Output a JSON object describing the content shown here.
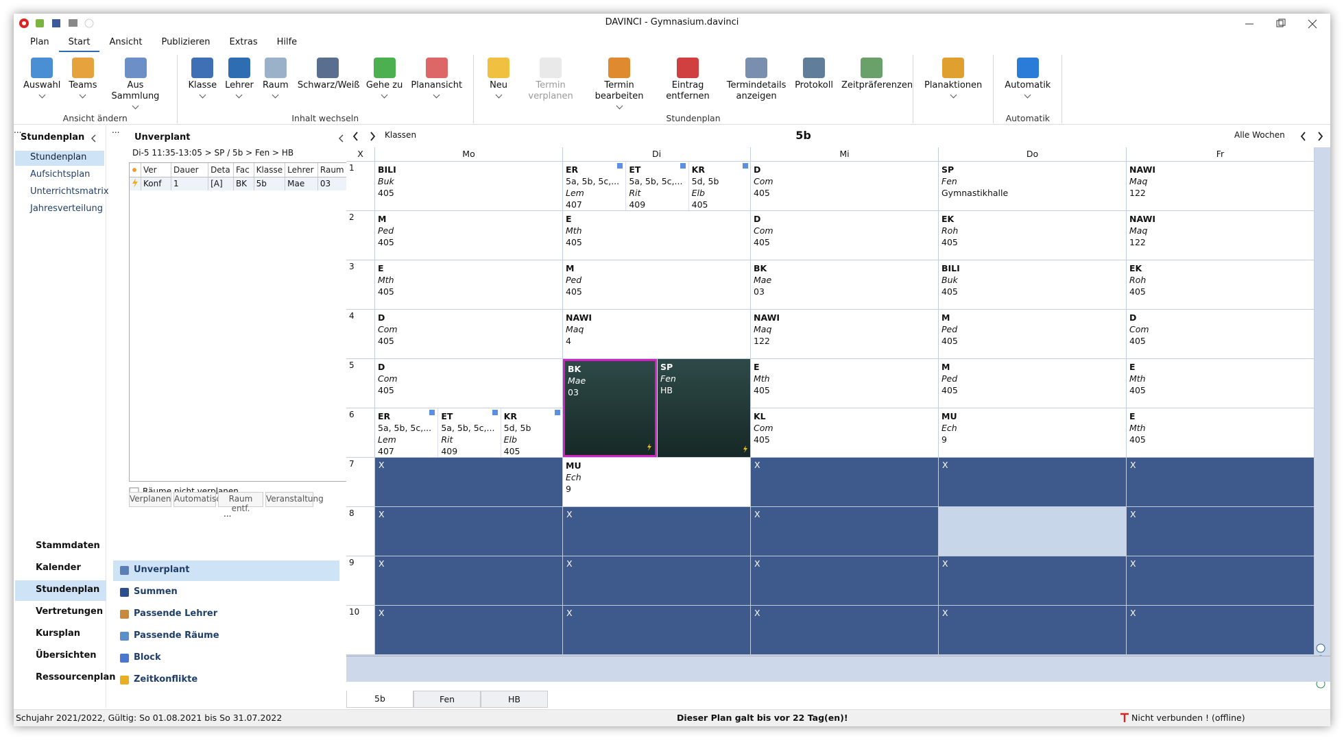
{
  "window": {
    "title": "DAVINCI - Gymnasium.davinci"
  },
  "menu": {
    "items": [
      "Plan",
      "Start",
      "Ansicht",
      "Publizieren",
      "Extras",
      "Hilfe"
    ]
  },
  "ribbon": {
    "groups": [
      {
        "label": "Ansicht ändern",
        "buttons": [
          "Auswahl",
          "Teams",
          "Aus Sammlung"
        ]
      },
      {
        "label": "Inhalt wechseln",
        "buttons": [
          "Klasse",
          "Lehrer",
          "Raum",
          "Schwarz/Weiß",
          "Gehe zu",
          "Planansicht"
        ]
      },
      {
        "label": "Stundenplan",
        "buttons": [
          "Neu",
          "Termin verplanen",
          "Termin bearbeiten",
          "Eintrag entfernen",
          "Termindetails anzeigen",
          "Protokoll",
          "Zeitpräferenzen"
        ]
      },
      {
        "buttons": [
          "Planaktionen"
        ]
      },
      {
        "label": "Automatik",
        "buttons": [
          "Automatik"
        ]
      }
    ]
  },
  "left_panel": {
    "title": "Stundenplan",
    "items": [
      "Stundenplan",
      "Aufsichtsplan",
      "Unterrichtsmatrix",
      "Jahresverteilung"
    ],
    "nav": [
      "Stammdaten",
      "Kalender",
      "Stundenplan",
      "Vertretungen",
      "Kursplan",
      "Übersichten",
      "Ressourcenplan"
    ],
    "more": "..."
  },
  "unplanned": {
    "title": "Unverplant",
    "path": "Di-5 11:35-13:05 > SP / 5b > Fen > HB",
    "headers": [
      "Ver",
      "Dauer",
      "Deta",
      "Fac",
      "Klasse",
      "Lehrer",
      "Raum"
    ],
    "rows": [
      [
        "Konf",
        "1",
        "[A]",
        "BK",
        "5b",
        "Mae",
        "03"
      ]
    ],
    "checkbox": "Räume nicht verplanen",
    "buttons": [
      "Verplanen",
      "Automatisch",
      "Raum entf.",
      "Veranstaltung"
    ],
    "more": "...",
    "views": [
      "Unverplant",
      "Summen",
      "Passende Lehrer",
      "Passende Räume",
      "Block",
      "Zeitkonflikte"
    ],
    "more2": "..."
  },
  "timetable": {
    "mode": "Klassen",
    "title": "5b",
    "weeks": "Alle Wochen",
    "corner": "X",
    "days": [
      "Mo",
      "Di",
      "Mi",
      "Do",
      "Fr"
    ],
    "rows": [
      {
        "period": "1",
        "cells": [
          [
            {
              "subject": "BILI",
              "teacher": "Buk",
              "room": "405"
            }
          ],
          [
            {
              "subject": "ER",
              "classes": "5a, 5b, 5c,...",
              "teacher": "Lem",
              "room": "407"
            },
            {
              "subject": "ET",
              "classes": "5a, 5b, 5c,...",
              "teacher": "Rit",
              "room": "409"
            },
            {
              "subject": "KR",
              "classes": "5d, 5b",
              "teacher": "Elb",
              "room": "405"
            }
          ],
          [
            {
              "subject": "D",
              "teacher": "Com",
              "room": "405"
            }
          ],
          [
            {
              "subject": "SP",
              "teacher": "Fen",
              "room": "Gymnastikhalle"
            }
          ],
          [
            {
              "subject": "NAWI",
              "teacher": "Maq",
              "room": "122"
            }
          ]
        ]
      },
      {
        "period": "2",
        "cells": [
          [
            {
              "subject": "M",
              "teacher": "Ped",
              "room": "405"
            }
          ],
          [
            {
              "subject": "E",
              "teacher": "Mth",
              "room": "405"
            }
          ],
          [
            {
              "subject": "D",
              "teacher": "Com",
              "room": "405"
            }
          ],
          [
            {
              "subject": "EK",
              "teacher": "Roh",
              "room": "405"
            }
          ],
          [
            {
              "subject": "NAWI",
              "teacher": "Maq",
              "room": "122"
            }
          ]
        ]
      },
      {
        "period": "3",
        "cells": [
          [
            {
              "subject": "E",
              "teacher": "Mth",
              "room": "405"
            }
          ],
          [
            {
              "subject": "M",
              "teacher": "Ped",
              "room": "405"
            }
          ],
          [
            {
              "subject": "BK",
              "teacher": "Mae",
              "room": "03"
            }
          ],
          [
            {
              "subject": "BILI",
              "teacher": "Buk",
              "room": "405"
            }
          ],
          [
            {
              "subject": "EK",
              "teacher": "Roh",
              "room": "405"
            }
          ]
        ]
      },
      {
        "period": "4",
        "cells": [
          [
            {
              "subject": "D",
              "teacher": "Com",
              "room": "405"
            }
          ],
          [
            {
              "subject": "NAWI",
              "teacher": "Maq",
              "room": "4"
            }
          ],
          [
            {
              "subject": "NAWI",
              "teacher": "Maq",
              "room": "122"
            }
          ],
          [
            {
              "subject": "M",
              "teacher": "Ped",
              "room": "405"
            }
          ],
          [
            {
              "subject": "D",
              "teacher": "Com",
              "room": "405"
            }
          ]
        ]
      },
      {
        "period": "5",
        "cells": [
          [
            {
              "subject": "D",
              "teacher": "Com",
              "room": "405"
            }
          ],
          [
            {
              "subject": "BK",
              "teacher": "Mae",
              "room": "03"
            },
            {
              "subject": "SP",
              "teacher": "Fen",
              "room": "HB"
            }
          ],
          [
            {
              "subject": "E",
              "teacher": "Mth",
              "room": "405"
            }
          ],
          [
            {
              "subject": "M",
              "teacher": "Ped",
              "room": "405"
            }
          ],
          [
            {
              "subject": "E",
              "teacher": "Mth",
              "room": "405"
            }
          ]
        ]
      },
      {
        "period": "6",
        "cells": [
          [
            {
              "subject": "ER",
              "classes": "5a, 5b, 5c,...",
              "teacher": "Lem",
              "room": "407"
            },
            {
              "subject": "ET",
              "classes": "5a, 5b, 5c,...",
              "teacher": "Rit",
              "room": "409"
            },
            {
              "subject": "KR",
              "classes": "5d, 5b",
              "teacher": "Elb",
              "room": "405"
            }
          ],
          null,
          [
            {
              "subject": "KL",
              "teacher": "Com",
              "room": "405"
            }
          ],
          [
            {
              "subject": "MU",
              "teacher": "Ech",
              "room": "9"
            }
          ],
          [
            {
              "subject": "E",
              "teacher": "Mth",
              "room": "405"
            }
          ]
        ]
      },
      {
        "period": "7",
        "cells": [
          "X",
          [
            {
              "subject": "MU",
              "teacher": "Ech",
              "room": "9"
            }
          ],
          "X",
          "X",
          "X"
        ]
      },
      {
        "period": "8",
        "cells": [
          "X",
          "X",
          "X",
          null,
          "X"
        ]
      },
      {
        "period": "9",
        "cells": [
          "X",
          "X",
          "X",
          "X",
          "X"
        ]
      },
      {
        "period": "10",
        "cells": [
          "X",
          "X",
          "X",
          "X",
          "X"
        ]
      }
    ],
    "tabs": [
      "5b",
      "Fen",
      "HB"
    ]
  },
  "status": {
    "left": "Schujahr 2021/2022, Gültig: So 01.08.2021 bis So 31.07.2022",
    "center": "Dieser Plan galt bis vor 22 Tag(en)!",
    "right": "Nicht verbunden ! (offline)"
  }
}
